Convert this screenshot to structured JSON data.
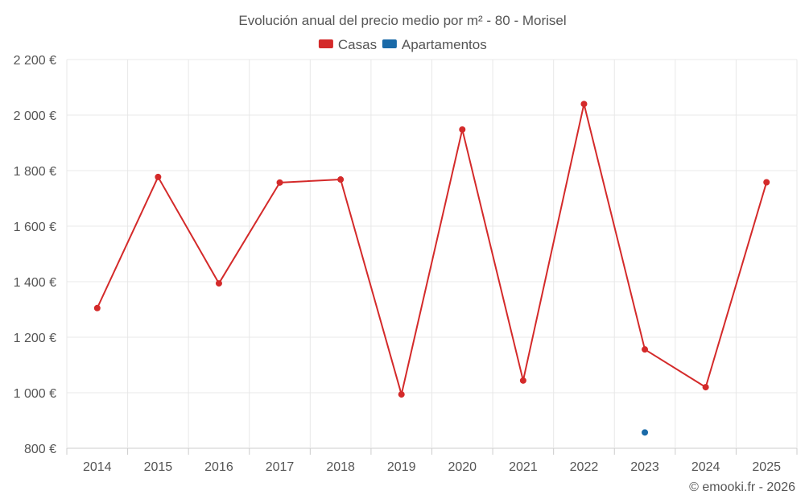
{
  "chart_data": {
    "type": "line",
    "title": "Evolución anual del precio medio por m² - 80 - Morisel",
    "categories": [
      "2014",
      "2015",
      "2016",
      "2017",
      "2018",
      "2019",
      "2020",
      "2021",
      "2022",
      "2023",
      "2024",
      "2025"
    ],
    "series": [
      {
        "name": "Casas",
        "color": "#d42a2a",
        "values": [
          1305,
          1777,
          1394,
          1757,
          1768,
          994,
          1948,
          1044,
          2040,
          1156,
          1020,
          1758
        ]
      },
      {
        "name": "Apartamentos",
        "color": "#1a6aa8",
        "values": [
          null,
          null,
          null,
          null,
          null,
          null,
          null,
          null,
          null,
          857,
          null,
          null
        ]
      }
    ],
    "ylim": [
      800,
      2200
    ],
    "yticks": [
      800,
      1000,
      1200,
      1400,
      1600,
      1800,
      2000,
      2200
    ],
    "ytick_labels": [
      "800 €",
      "1 000 €",
      "1 200 €",
      "1 400 €",
      "1 600 €",
      "1 800 €",
      "2 000 €",
      "2 200 €"
    ],
    "xlabel": "",
    "ylabel": "",
    "legend_position": "top-center",
    "grid": true
  },
  "credit": "© emooki.fr - 2026"
}
